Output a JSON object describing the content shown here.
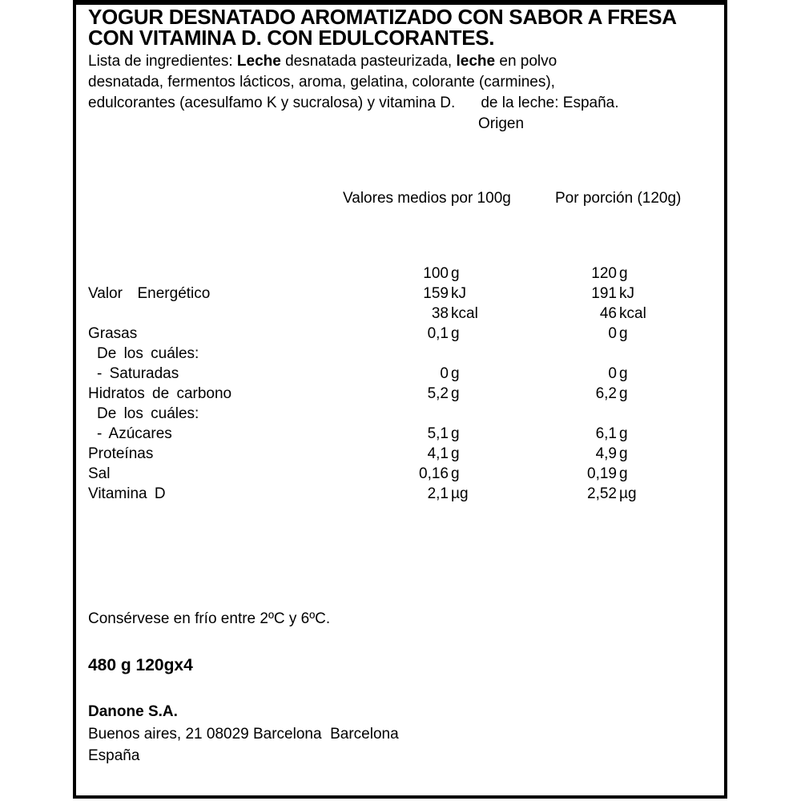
{
  "label": {
    "title_line1": "YOGUR DESNATADO AROMATIZADO CON SABOR A FRESA",
    "title_line2": "CON VITAMINA D. CON EDULCORANTES.",
    "ingredients": {
      "line1_prefix": "Lista de ingredientes: ",
      "line1_bold1": "Leche",
      "line1_mid": " desnatada pasteurizada, ",
      "line1_bold2": "leche",
      "line1_suffix": " en polvo",
      "line2": "desnatada, fermentos lácticos, aroma, gelatina, colorante (carmines),",
      "line3_part1": "edulcorantes (acesulfamo K y sucralosa) y vitamina D.",
      "line3_part2": "de la leche: España.",
      "line4": "Origen"
    },
    "nutrition": {
      "header_col1": "Valores medios por 100g",
      "header_col2": "Por porción (120g)",
      "rows": [
        {
          "label": "",
          "indent": false,
          "n1": "100",
          "u1": "g",
          "n2": "120",
          "u2": "g"
        },
        {
          "label": "Valor  Energético",
          "indent": false,
          "n1": "159",
          "u1": "kJ",
          "n2": "191",
          "u2": "kJ"
        },
        {
          "label": "",
          "indent": false,
          "n1": "38",
          "u1": "kcal",
          "n2": "46",
          "u2": "kcal"
        },
        {
          "label": "Grasas",
          "indent": false,
          "n1": "0,1",
          "u1": "g",
          "n2": "0",
          "u2": "g"
        },
        {
          "label": "De los cuáles:",
          "indent": true,
          "n1": "",
          "u1": "",
          "n2": "",
          "u2": ""
        },
        {
          "label": "- Saturadas",
          "indent": true,
          "n1": "0",
          "u1": "g",
          "n2": "0",
          "u2": "g"
        },
        {
          "label": "Hidratos de carbono",
          "indent": false,
          "n1": "5,2",
          "u1": "g",
          "n2": "6,2",
          "u2": "g"
        },
        {
          "label": "De los cuáles:",
          "indent": true,
          "n1": "",
          "u1": "",
          "n2": "",
          "u2": ""
        },
        {
          "label": "- Azúcares",
          "indent": true,
          "n1": "5,1",
          "u1": "g",
          "n2": "6,1",
          "u2": "g"
        },
        {
          "label": "Proteínas",
          "indent": false,
          "n1": "4,1",
          "u1": "g",
          "n2": "4,9",
          "u2": "g"
        },
        {
          "label": "Sal",
          "indent": false,
          "n1": "0,16",
          "u1": "g",
          "n2": "0,19",
          "u2": "g"
        },
        {
          "label": "Vitamina D",
          "indent": false,
          "n1": "2,1",
          "u1": "µg",
          "n2": "2,52",
          "u2": "µg"
        }
      ]
    },
    "storage": "Consérvese en frío entre 2ºC y 6ºC.",
    "net_weight": "480 g 120gx4",
    "manufacturer": {
      "name": "Danone S.A.",
      "address": "Buenos aires, 21 08029 Barcelona  Barcelona",
      "country": "España"
    }
  }
}
